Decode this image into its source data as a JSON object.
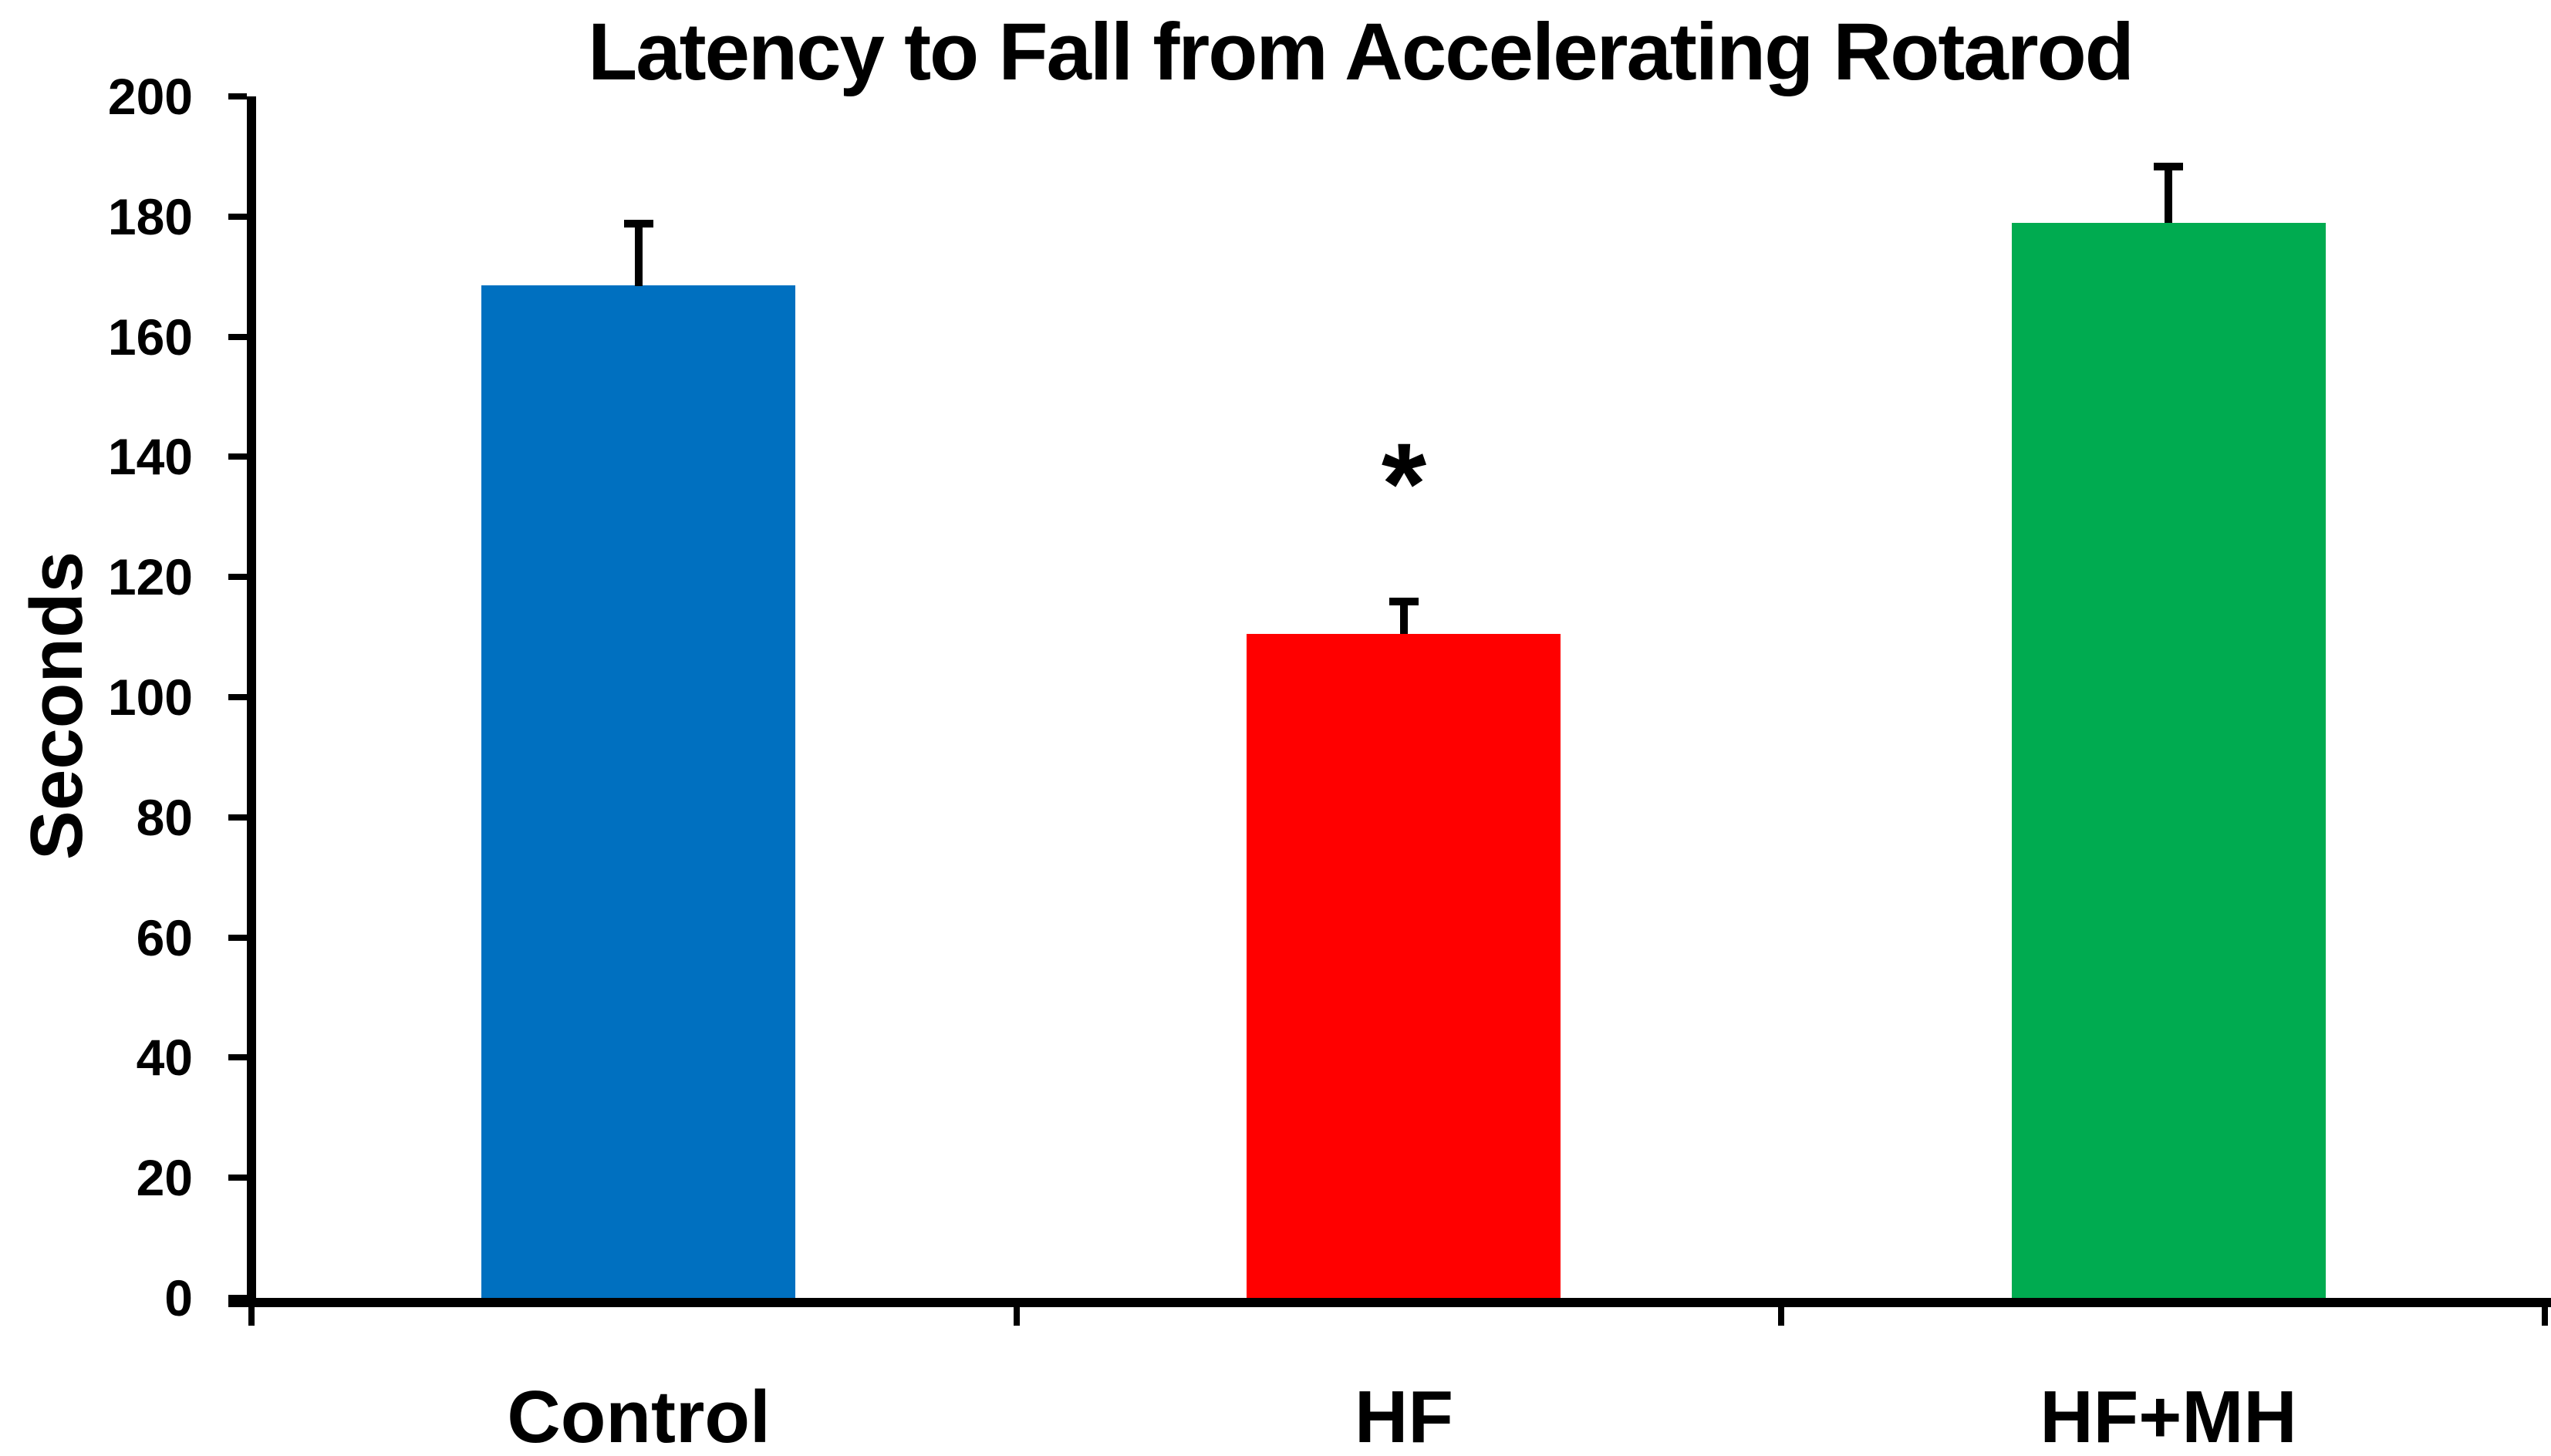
{
  "title": "Latency to Fall from Accelerating Rotarod",
  "chart_data": {
    "type": "bar",
    "title": "Latency to Fall from Accelerating Rotarod",
    "xlabel": "",
    "ylabel": "Seconds",
    "categories": [
      "Control",
      "HF",
      "HF+MH"
    ],
    "values": [
      168.5,
      110.5,
      179
    ],
    "errors_up": [
      11,
      6,
      10
    ],
    "bar_colors": [
      "#0070C0",
      "#FF0000",
      "#00AB50"
    ],
    "ylim": [
      0,
      200
    ],
    "ytick_step": 20,
    "ytick_labels": [
      "0",
      "20",
      "40",
      "60",
      "80",
      "100",
      "120",
      "140",
      "160",
      "180",
      "200"
    ],
    "grid": false,
    "legend": "none",
    "annotations": [
      {
        "text": "*",
        "category_index": 1,
        "y_value": 140
      }
    ],
    "axis_color": "#000000",
    "background_color": "#FFFFFF"
  }
}
